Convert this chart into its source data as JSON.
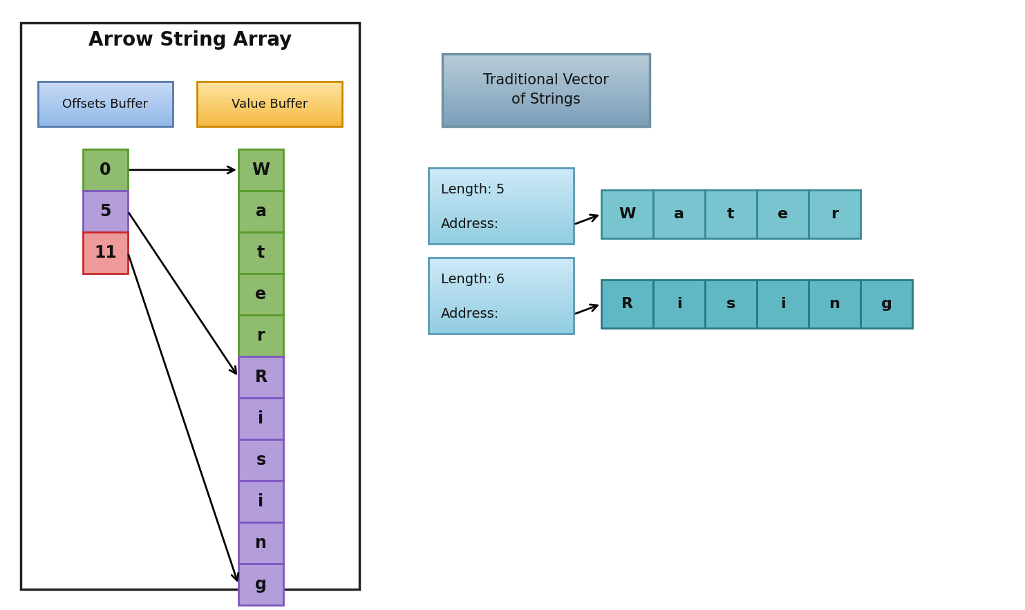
{
  "title_left": "Arrow String Array",
  "title_right": "Traditional Vector\nof Strings",
  "offsets_label": "Offsets Buffer",
  "values_label": "Value Buffer",
  "offset_values": [
    "0",
    "5",
    "11"
  ],
  "offset_colors": [
    "#8fbc6e",
    "#b39ddb",
    "#ef9a9a"
  ],
  "offset_edge_colors": [
    "#5a9a2a",
    "#7e57c2",
    "#c62828"
  ],
  "value_colors_water": "#8fbc6e",
  "value_colors_rising": "#b39ddb",
  "value_edge_water": "#5a9a2a",
  "value_edge_rising": "#7e57c2",
  "value_chars": [
    "W",
    "a",
    "t",
    "e",
    "r",
    "R",
    "i",
    "s",
    "i",
    "n",
    "g"
  ],
  "left_header_blue": "#aec6e8",
  "left_header_orange": "#f5c97a",
  "left_header_orange_edge": "#cc8800",
  "left_header_blue_edge": "#5577aa",
  "trad_header_top": "#aabdd4",
  "trad_header_bot": "#7b96b2",
  "trad_header_edge": "#7090a0",
  "info_box_top": "#cde8f5",
  "info_box_bot": "#9fcfe0",
  "info_box_edge": "#5a9ab5",
  "water_cell_color": "#78c5d0",
  "water_cell_edge": "#3a8a95",
  "rising_cell_color": "#60b8c4",
  "rising_cell_edge": "#2a7a85",
  "arrow_color": "#000000",
  "outer_box_color": "#222222",
  "bg": "#ffffff"
}
